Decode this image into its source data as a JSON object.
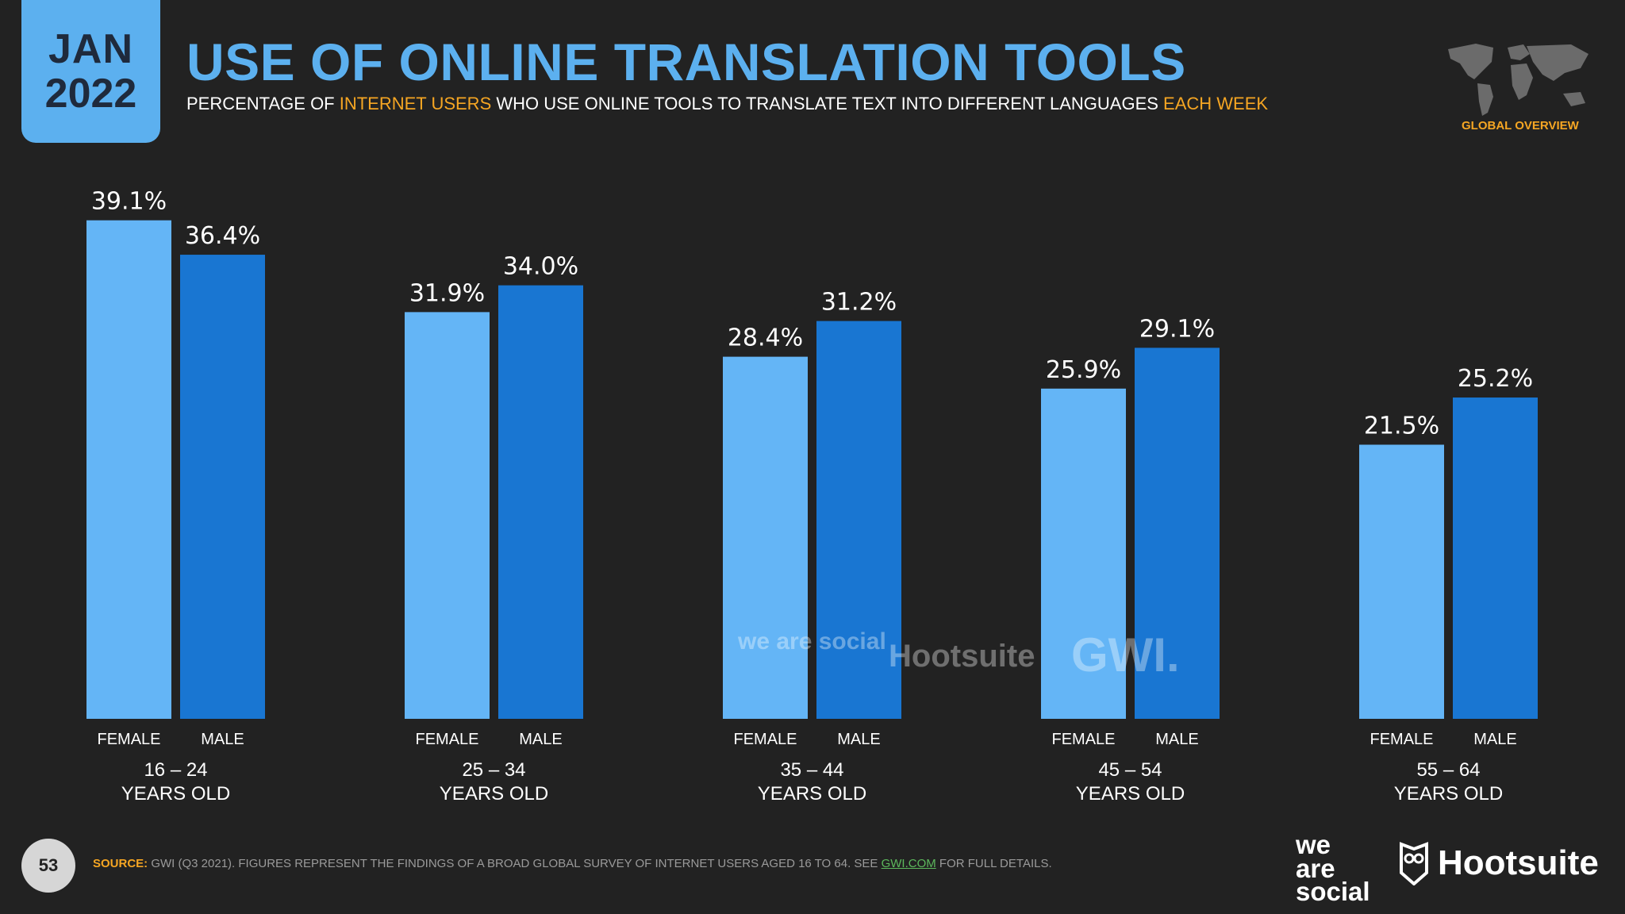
{
  "header": {
    "month": "JAN",
    "year": "2022",
    "title": "USE OF ONLINE TRANSLATION TOOLS",
    "subtitle_parts": {
      "p1": "PERCENTAGE OF ",
      "p2": "INTERNET USERS",
      "p3": " WHO USE ONLINE TOOLS TO TRANSLATE TEXT INTO DIFFERENT LANGUAGES ",
      "p4": "EACH WEEK"
    },
    "global_label": "GLOBAL OVERVIEW"
  },
  "chart_data": {
    "type": "bar",
    "groups": [
      {
        "line1": "16 – 24",
        "line2": "YEARS OLD"
      },
      {
        "line1": "25 – 34",
        "line2": "YEARS OLD"
      },
      {
        "line1": "35 – 44",
        "line2": "YEARS OLD"
      },
      {
        "line1": "45 – 54",
        "line2": "YEARS OLD"
      },
      {
        "line1": "55 – 64",
        "line2": "YEARS OLD"
      }
    ],
    "series": [
      {
        "name": "FEMALE",
        "color": "#64b5f6",
        "values": [
          39.1,
          31.9,
          28.4,
          25.9,
          21.5
        ],
        "labels": [
          "39.1%",
          "31.9%",
          "28.4%",
          "25.9%",
          "21.5%"
        ]
      },
      {
        "name": "MALE",
        "color": "#1976d2",
        "values": [
          36.4,
          34.0,
          31.2,
          29.1,
          25.2
        ],
        "labels": [
          "36.4%",
          "34.0%",
          "31.2%",
          "29.1%",
          "25.2%"
        ]
      }
    ],
    "ylim": [
      0,
      40
    ]
  },
  "watermarks": {
    "was": "we are social",
    "hootsuite": "Hootsuite",
    "gwi": "GWI."
  },
  "footer": {
    "page_number": "53",
    "source_label": "SOURCE:",
    "source_text": " GWI (Q3 2021). FIGURES REPRESENT THE FINDINGS OF A BROAD GLOBAL SURVEY OF INTERNET USERS AGED 16 TO 64. SEE ",
    "source_link": "GWI.COM",
    "source_end": " FOR FULL DETAILS.",
    "logo_was_1": "we",
    "logo_was_2": "are",
    "logo_was_3": "social",
    "logo_hootsuite": "Hootsuite"
  }
}
